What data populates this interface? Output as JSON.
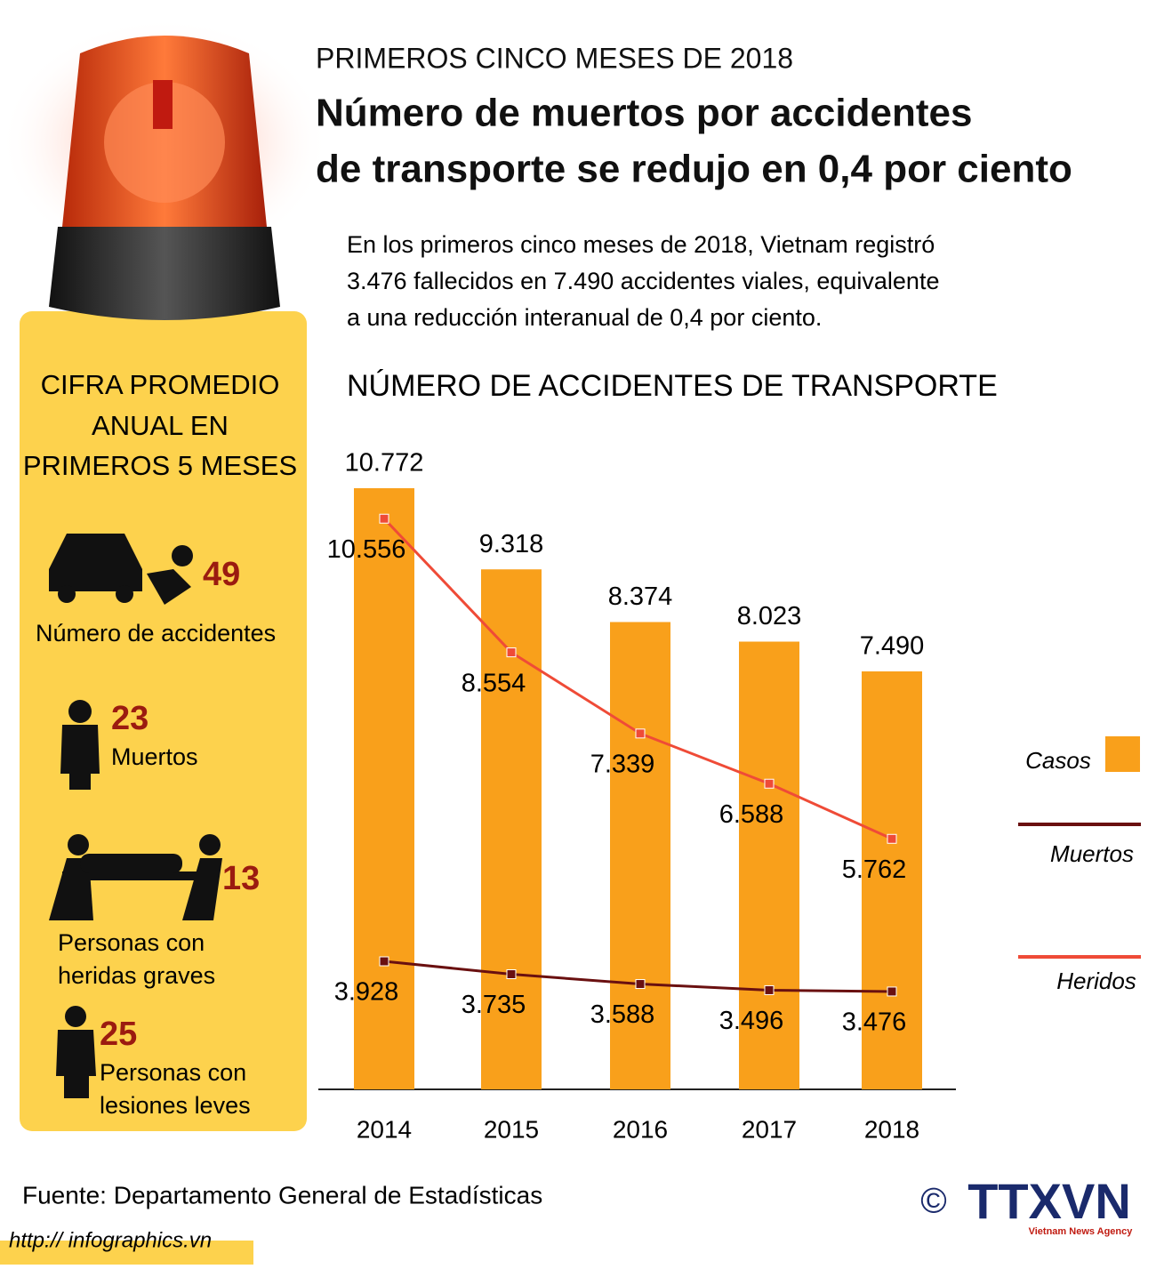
{
  "header": {
    "kicker": "PRIMEROS CINCO MESES DE 2018",
    "title_lines": [
      "Número de muertos por accidentes",
      "de transporte se redujo en 0,4 por ciento"
    ],
    "intro_lines": [
      "En los primeros cinco meses de 2018, Vietnam registró",
      "3.476 fallecidos en 7.490 accidentes viales, equivalente",
      "a una reducción interanual de 0,4 por ciento."
    ]
  },
  "sidebar": {
    "heading_lines": [
      "CIFRA PROMEDIO",
      "ANUAL EN",
      "PRIMEROS 5 MESES"
    ],
    "stats": [
      {
        "value": 49,
        "label_lines": [
          "Número de accidentes"
        ]
      },
      {
        "value": 23,
        "label_lines": [
          "Muertos"
        ]
      },
      {
        "value": 13,
        "label_lines": [
          "Personas con",
          "heridas graves"
        ]
      },
      {
        "value": 25,
        "label_lines": [
          "Personas con",
          "lesiones leves"
        ]
      }
    ]
  },
  "chart_data": {
    "type": "bar",
    "title": "NÚMERO DE ACCIDENTES DE TRANSPORTE",
    "categories": [
      "2014",
      "2015",
      "2016",
      "2017",
      "2018"
    ],
    "series": [
      {
        "name": "Casos",
        "type": "bar",
        "color": "#f9a01b",
        "values": [
          10772,
          9318,
          8374,
          8023,
          7490
        ],
        "value_labels": [
          "10.772",
          "9.318",
          "8.374",
          "8.023",
          "7.490"
        ]
      },
      {
        "name": "Muertos",
        "type": "line",
        "color": "#6a1010",
        "values": [
          3928,
          3735,
          3588,
          3496,
          3476
        ],
        "value_labels": [
          "3.928",
          "3.735",
          "3.588",
          "3.496",
          "3.476"
        ]
      },
      {
        "name": "Heridos",
        "type": "line",
        "color": "#ef4b37",
        "values": [
          10556,
          8554,
          7339,
          6588,
          5762
        ],
        "value_labels": [
          "10.556",
          "8.554",
          "7.339",
          "6.588",
          "5.762"
        ]
      }
    ]
  },
  "footer": {
    "source": "Fuente: Departamento General de Estadísticas",
    "url": "http:// infographics.vn",
    "copyright": "©",
    "logo": "TTXVN",
    "agency": "Vietnam News Agency"
  }
}
